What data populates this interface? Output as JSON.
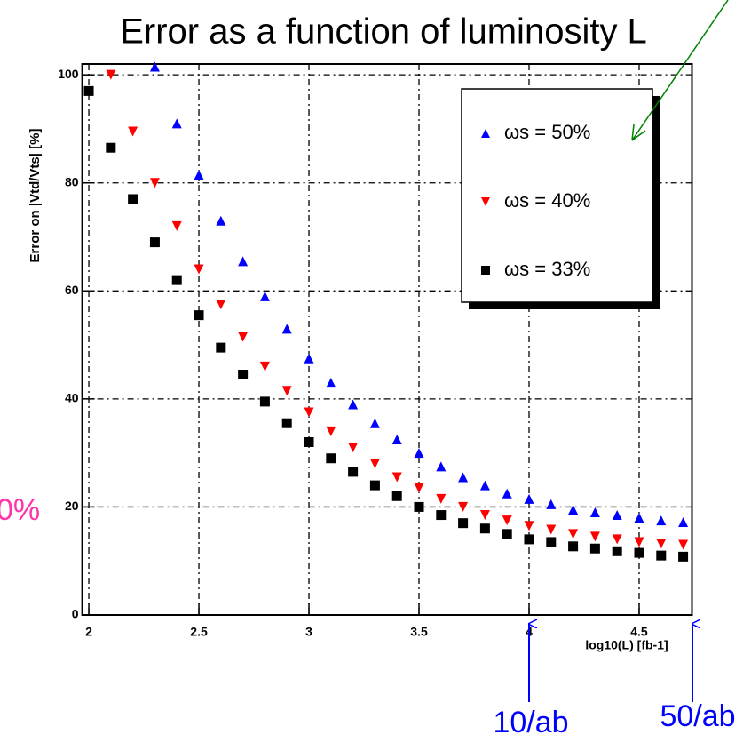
{
  "chart_data": {
    "type": "scatter",
    "title": "Error as a function of luminosity L",
    "x_label": "log10(L) [fb-1]",
    "y_label": "Error on |Vtd/Vts| [%]",
    "x": [
      2.0,
      2.1,
      2.2,
      2.3,
      2.4,
      2.5,
      2.6,
      2.7,
      2.8,
      2.9,
      3.0,
      3.1,
      3.2,
      3.3,
      3.4,
      3.5,
      3.6,
      3.7,
      3.8,
      3.9,
      4.0,
      4.1,
      4.2,
      4.3,
      4.4,
      4.5,
      4.6,
      4.7
    ],
    "series": [
      {
        "name": "ωs = 50%",
        "color": "#0000ff",
        "marker": "triangle-up",
        "values": [
          null,
          null,
          null,
          101.5,
          91,
          81.5,
          73,
          65.5,
          59,
          53,
          47.5,
          43,
          39,
          35.5,
          32.5,
          30,
          27.5,
          25.5,
          24,
          22.5,
          21.5,
          20.5,
          19.5,
          19,
          18.5,
          18,
          17.5,
          17.2
        ]
      },
      {
        "name": "ωs = 40%",
        "color": "#ff0000",
        "marker": "triangle-down",
        "values": [
          null,
          100,
          89.5,
          80,
          72,
          64,
          57.5,
          51.5,
          46,
          41.5,
          37.5,
          34,
          31,
          28,
          25.5,
          23.5,
          21.5,
          20,
          18.5,
          17.5,
          16.5,
          15.8,
          15,
          14.5,
          14,
          13.5,
          13.2,
          13
        ]
      },
      {
        "name": "ωs = 33%",
        "color": "#000000",
        "marker": "square",
        "values": [
          97,
          86.5,
          77,
          69,
          62,
          55.5,
          49.5,
          44.5,
          39.5,
          35.5,
          32,
          29,
          26.5,
          24,
          22,
          20,
          18.5,
          17,
          16,
          15,
          14,
          13.5,
          12.7,
          12.3,
          11.8,
          11.5,
          11,
          10.8
        ]
      }
    ],
    "xlim": [
      1.97,
      4.74
    ],
    "ylim": [
      0,
      102
    ],
    "xticks": [
      2,
      2.5,
      3,
      3.5,
      4,
      4.5
    ],
    "yticks": [
      0,
      20,
      40,
      60,
      80,
      100
    ],
    "grid": true,
    "annotations": [
      "10/ab",
      "50/ab",
      "0%"
    ]
  }
}
